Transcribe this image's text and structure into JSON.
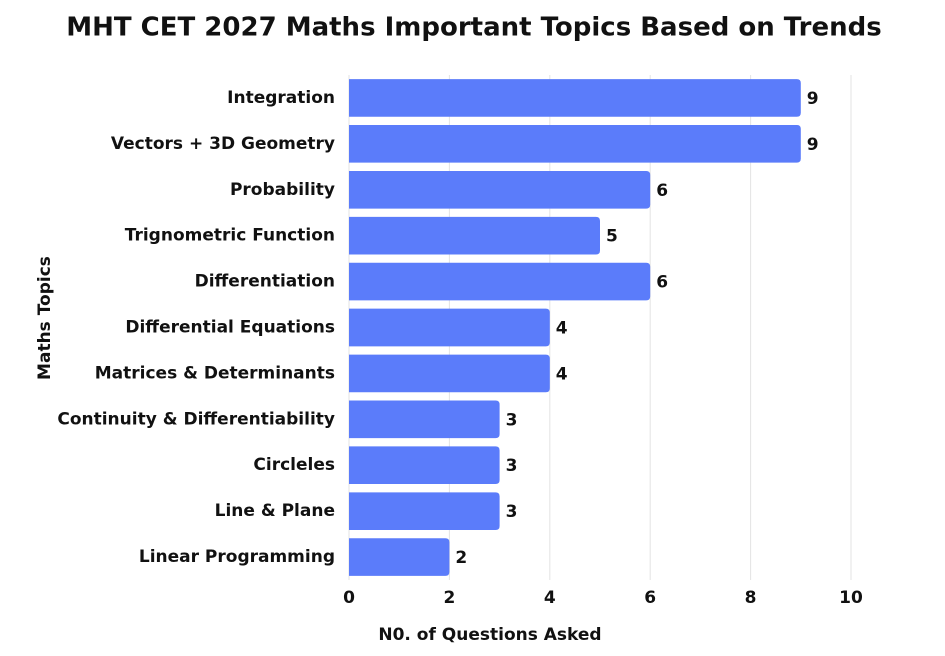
{
  "chart_data": {
    "type": "bar",
    "orientation": "horizontal",
    "title": "MHT CET 2027 Maths Important Topics Based on Trends",
    "x_label": "N0. of Questions Asked",
    "y_label": "Maths Topics",
    "categories": [
      "Integration",
      "Vectors + 3D Geometry",
      "Probability",
      "Trignometric Function",
      "Differentiation",
      "Differential Equations",
      "Matrices & Determinants",
      "Continuity & Differentiability",
      "Circleles",
      "Line & Plane",
      "Linear Programming"
    ],
    "values": [
      9,
      9,
      6,
      5,
      6,
      4,
      4,
      3,
      3,
      3,
      2
    ],
    "color": "#5b7cfa",
    "xlim": [
      0,
      10
    ],
    "xticks": [
      0,
      2,
      4,
      6,
      8,
      10
    ],
    "grid": true
  }
}
